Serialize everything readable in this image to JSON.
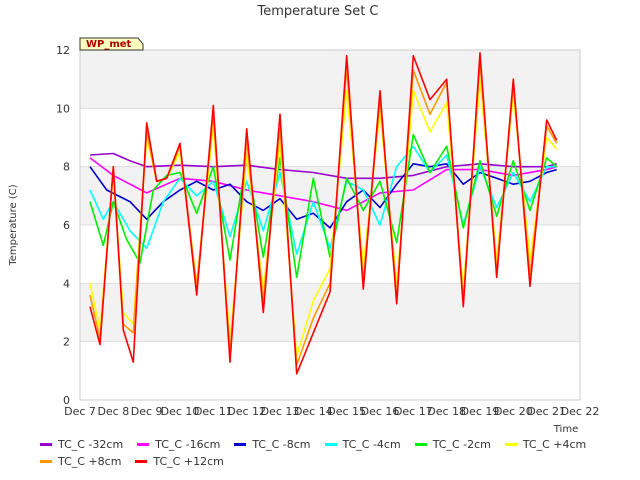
{
  "chart_data": {
    "type": "line",
    "title": "Temperature Set C",
    "xlabel": "Time",
    "ylabel": "Temperature (C)",
    "ylim": [
      0,
      12
    ],
    "xlim": [
      0,
      15
    ],
    "yticks": [
      "0",
      "2",
      "4",
      "6",
      "8",
      "10",
      "12"
    ],
    "xticks": [
      "Dec 7",
      "Dec 8",
      "Dec 9",
      "Dec 10",
      "Dec 11",
      "Dec 12",
      "Dec 13",
      "Dec 14",
      "Dec 15",
      "Dec 16",
      "Dec 17",
      "Dec 18",
      "Dec 19",
      "Dec 20",
      "Dec 21",
      "Dec 22"
    ],
    "annotation": "WP_met",
    "bands": "alternating grey bands between gridlines",
    "series": [
      {
        "name": "TC_C -32cm",
        "color": "#9900cc",
        "x": [
          0.3,
          1,
          1.5,
          2,
          3,
          4,
          5,
          6,
          7,
          8,
          9,
          10,
          11,
          12,
          13,
          14,
          14.3
        ],
        "y": [
          8.4,
          8.45,
          8.2,
          8.0,
          8.05,
          8.0,
          8.05,
          7.9,
          7.8,
          7.6,
          7.6,
          7.7,
          8.0,
          8.1,
          8.0,
          8.0,
          8.1
        ]
      },
      {
        "name": "TC_C -16cm",
        "color": "#ff00ff",
        "x": [
          0.3,
          1,
          2,
          3,
          4,
          5,
          6,
          7,
          8,
          9,
          10,
          11,
          12,
          13,
          14,
          14.3
        ],
        "y": [
          8.3,
          7.7,
          7.1,
          7.6,
          7.5,
          7.2,
          7.0,
          6.8,
          6.5,
          7.1,
          7.2,
          7.9,
          7.9,
          7.7,
          7.9,
          8.0
        ]
      },
      {
        "name": "TC_C -8cm",
        "color": "#0000cc",
        "x": [
          0.3,
          0.8,
          1.5,
          2,
          2.5,
          3,
          3.5,
          4,
          4.5,
          5,
          5.5,
          6,
          6.5,
          7,
          7.5,
          8,
          8.5,
          9,
          9.5,
          10,
          10.5,
          11,
          11.5,
          12,
          12.5,
          13,
          13.5,
          14,
          14.3
        ],
        "y": [
          8.0,
          7.2,
          6.8,
          6.2,
          6.8,
          7.2,
          7.5,
          7.2,
          7.4,
          6.8,
          6.5,
          6.9,
          6.2,
          6.4,
          5.9,
          6.8,
          7.2,
          6.6,
          7.4,
          8.1,
          8.0,
          8.1,
          7.4,
          7.8,
          7.6,
          7.4,
          7.5,
          7.8,
          7.9
        ]
      },
      {
        "name": "TC_C -4cm",
        "color": "#00ffff",
        "x": [
          0.3,
          0.7,
          1,
          1.5,
          2,
          2.5,
          3,
          3.5,
          4,
          4.5,
          5,
          5.5,
          6,
          6.5,
          7,
          7.5,
          8,
          8.5,
          9,
          9.5,
          10,
          10.5,
          11,
          11.5,
          12,
          12.5,
          13,
          13.5,
          14,
          14.3
        ],
        "y": [
          7.2,
          6.2,
          6.8,
          5.8,
          5.2,
          6.8,
          7.6,
          7.0,
          7.5,
          5.6,
          7.5,
          5.8,
          7.8,
          5.0,
          6.8,
          5.2,
          7.5,
          7.2,
          6.0,
          8.0,
          8.7,
          7.8,
          8.4,
          6.0,
          8.0,
          6.6,
          7.8,
          6.8,
          8.0,
          8.0
        ]
      },
      {
        "name": "TC_C -2cm",
        "color": "#00ee00",
        "x": [
          0.3,
          0.7,
          1,
          1.4,
          1.8,
          2.2,
          2.6,
          3,
          3.5,
          4,
          4.5,
          5,
          5.5,
          6,
          6.5,
          7,
          7.5,
          8,
          8.5,
          9,
          9.5,
          10,
          10.5,
          11,
          11.5,
          12,
          12.5,
          13,
          13.5,
          14,
          14.3
        ],
        "y": [
          6.8,
          5.3,
          6.8,
          5.5,
          4.7,
          7.2,
          7.7,
          7.8,
          6.4,
          8.0,
          4.8,
          8.3,
          4.9,
          8.3,
          4.2,
          7.6,
          4.9,
          7.6,
          6.5,
          7.5,
          5.4,
          9.1,
          7.8,
          8.7,
          5.9,
          8.2,
          6.3,
          8.2,
          6.5,
          8.3,
          8.0
        ]
      },
      {
        "name": "TC_C +4cm",
        "color": "#ffff00",
        "x": [
          0.3,
          0.6,
          1,
          1.3,
          1.6,
          2,
          2.3,
          2.6,
          3,
          3.5,
          4,
          4.5,
          5,
          5.5,
          6,
          6.5,
          7,
          7.5,
          8,
          8.5,
          9,
          9.5,
          10,
          10.5,
          11,
          11.5,
          12,
          12.5,
          13,
          13.5,
          14,
          14.3
        ],
        "y": [
          4.0,
          2.4,
          7.8,
          3.0,
          2.6,
          9.0,
          7.5,
          7.6,
          8.5,
          4.0,
          9.4,
          2.0,
          8.4,
          3.8,
          8.8,
          1.5,
          3.4,
          4.5,
          10.6,
          4.6,
          9.9,
          4.0,
          10.6,
          9.2,
          10.2,
          3.8,
          11.0,
          4.8,
          10.5,
          4.8,
          9.0,
          8.6
        ]
      },
      {
        "name": "TC_C +8cm",
        "color": "#ff9900",
        "x": [
          0.3,
          0.6,
          1,
          1.3,
          1.6,
          2,
          2.3,
          2.6,
          3,
          3.5,
          4,
          4.5,
          5,
          5.5,
          6,
          6.5,
          7,
          7.5,
          8,
          8.5,
          9,
          9.5,
          10,
          10.5,
          11,
          11.5,
          12,
          12.5,
          13,
          13.5,
          14,
          14.3
        ],
        "y": [
          3.6,
          2.1,
          7.9,
          2.6,
          2.3,
          9.2,
          7.5,
          7.6,
          8.7,
          3.9,
          9.8,
          1.6,
          8.9,
          3.4,
          9.3,
          1.2,
          2.8,
          4.0,
          11.4,
          4.1,
          10.3,
          3.6,
          11.3,
          9.8,
          10.9,
          3.4,
          11.6,
          4.4,
          10.8,
          4.3,
          9.4,
          8.8
        ]
      },
      {
        "name": "TC_C +12cm",
        "color": "#ff0000",
        "x": [
          0.3,
          0.6,
          1,
          1.3,
          1.6,
          2,
          2.3,
          2.6,
          3,
          3.5,
          4,
          4.5,
          5,
          5.5,
          6,
          6.5,
          7,
          7.5,
          8,
          8.5,
          9,
          9.5,
          10,
          10.5,
          11,
          11.5,
          12,
          12.5,
          13,
          13.5,
          14,
          14.3
        ],
        "y": [
          3.2,
          1.9,
          8.0,
          2.4,
          1.3,
          9.5,
          7.5,
          7.6,
          8.8,
          3.6,
          10.1,
          1.3,
          9.3,
          3.0,
          9.8,
          0.9,
          2.3,
          3.7,
          11.8,
          3.8,
          10.6,
          3.3,
          11.8,
          10.3,
          11.0,
          3.2,
          11.9,
          4.2,
          11.0,
          3.9,
          9.6,
          8.9
        ]
      }
    ]
  }
}
